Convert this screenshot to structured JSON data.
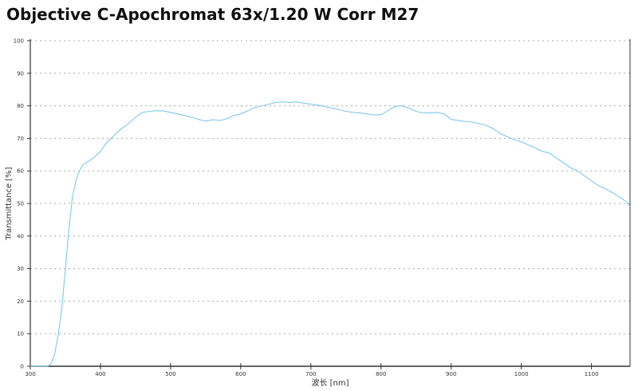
{
  "chart_data": {
    "type": "line",
    "title": "Objective C-Apochromat 63x/1.20 W Corr M27",
    "xlabel": "波长 [nm]",
    "ylabel": "Transmittance [%]",
    "xlim": [
      300,
      1155
    ],
    "ylim": [
      0,
      100
    ],
    "xticks": [
      300,
      400,
      500,
      600,
      700,
      800,
      900,
      1000,
      1100
    ],
    "yticks": [
      0,
      10,
      20,
      30,
      40,
      50,
      60,
      70,
      80,
      90,
      100
    ],
    "grid": "horizontal dotted",
    "line_color": "#7ec8ec",
    "series": [
      {
        "x": [
          300,
          325,
          330,
          335,
          340,
          345,
          350,
          355,
          360,
          365,
          370,
          375,
          380,
          390,
          400,
          410,
          420,
          430,
          440,
          450,
          460,
          470,
          480,
          490,
          500,
          510,
          520,
          530,
          540,
          550,
          560,
          570,
          580,
          590,
          600,
          610,
          620,
          630,
          640,
          650,
          660,
          670,
          680,
          690,
          700,
          710,
          720,
          730,
          740,
          750,
          760,
          770,
          780,
          790,
          800,
          810,
          820,
          830,
          840,
          850,
          860,
          870,
          880,
          890,
          900,
          910,
          920,
          930,
          940,
          950,
          960,
          970,
          980,
          990,
          1000,
          1010,
          1020,
          1030,
          1040,
          1050,
          1060,
          1070,
          1080,
          1090,
          1100,
          1110,
          1120,
          1130,
          1140,
          1150,
          1155
        ],
        "y": [
          0,
          0,
          1,
          4,
          10,
          18,
          30,
          42,
          52,
          57,
          60,
          62,
          62.5,
          64,
          66,
          69,
          71,
          73,
          74.5,
          76.5,
          78,
          78.3,
          78.5,
          78.4,
          78,
          77.5,
          77,
          76.5,
          75.8,
          75.3,
          75.7,
          75.5,
          76,
          77,
          77.5,
          78.5,
          79.5,
          80,
          80.5,
          81,
          81.2,
          81,
          81.2,
          80.8,
          80.5,
          80.2,
          79.8,
          79.3,
          78.8,
          78.3,
          78,
          77.8,
          77.5,
          77.2,
          77.3,
          78.5,
          79.8,
          80,
          79.3,
          78.3,
          77.8,
          77.8,
          78,
          77.5,
          75.8,
          75.5,
          75.2,
          75,
          74.5,
          74,
          73,
          71.5,
          70.5,
          69.5,
          69,
          68,
          67,
          66,
          65.5,
          64,
          62.5,
          61,
          60,
          58.5,
          57,
          55.5,
          54.5,
          53.3,
          52,
          50.5,
          49
        ]
      }
    ]
  }
}
